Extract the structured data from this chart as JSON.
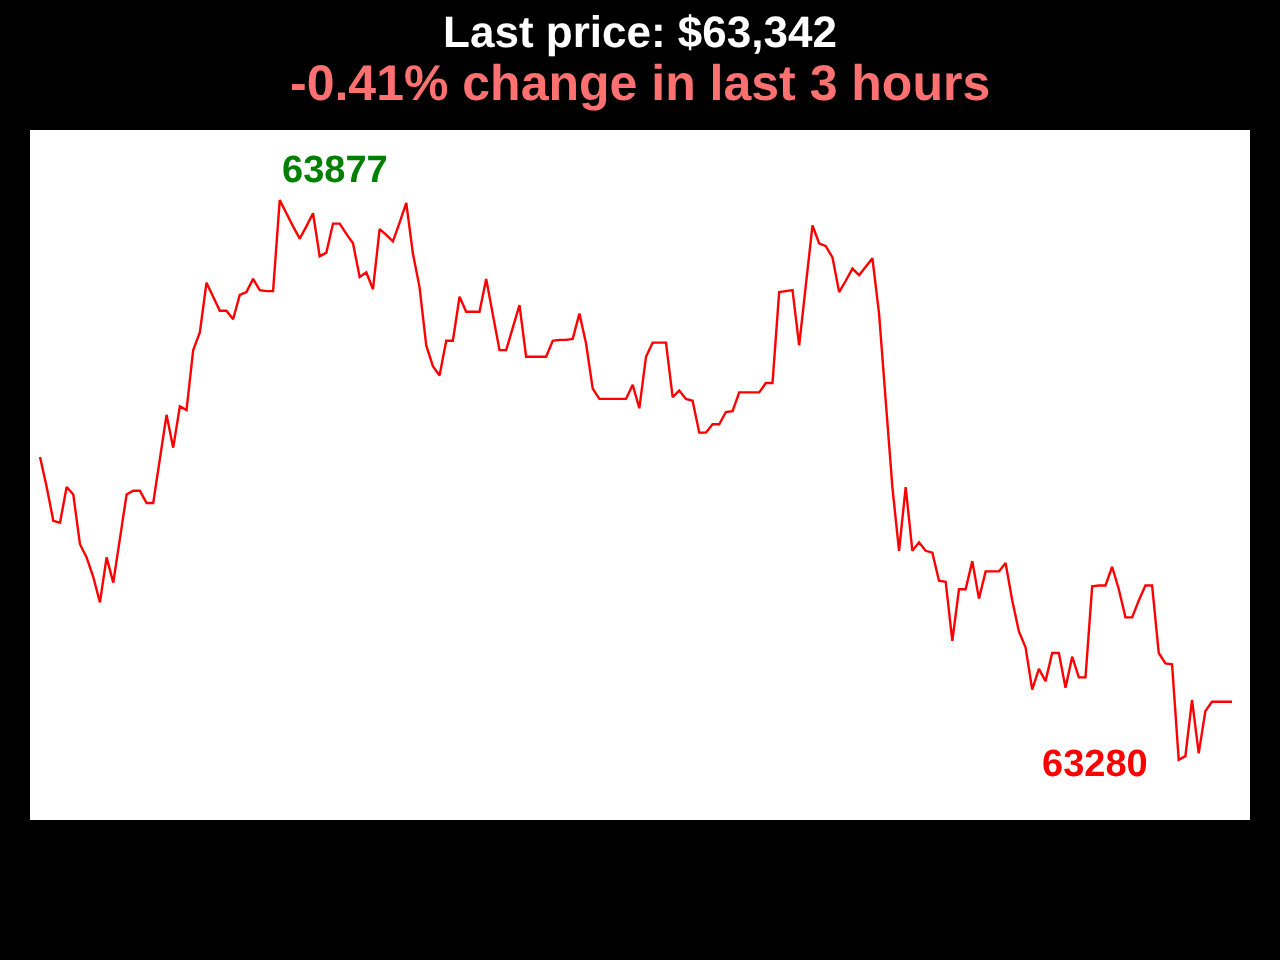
{
  "chart_data": {
    "type": "line",
    "title": "Last price: $63,342",
    "subtitle": "-0.41% change in last 3 hours",
    "categories": [
      null,
      null,
      null,
      null,
      null,
      null,
      null,
      null,
      null,
      null,
      null,
      null,
      null,
      null,
      null,
      null,
      null,
      null,
      null,
      null,
      null,
      null,
      null,
      null,
      null,
      null,
      null,
      null,
      null,
      null,
      null,
      null,
      null,
      null,
      null,
      null,
      null,
      null,
      null,
      null,
      null,
      null,
      null,
      null,
      null,
      null,
      null,
      null,
      null,
      null,
      null,
      null,
      null,
      null,
      null,
      null,
      null,
      null,
      null,
      null,
      null,
      null,
      null,
      null,
      null,
      null,
      null,
      null,
      null,
      null,
      null,
      null,
      null,
      null,
      null,
      null,
      null,
      null,
      null,
      null,
      null,
      null,
      null,
      null,
      null,
      null,
      null,
      null,
      null,
      null,
      null,
      null,
      null,
      null,
      null,
      null,
      null,
      null,
      null,
      null,
      null,
      null,
      null,
      null,
      null,
      null,
      null,
      null,
      null,
      null,
      null,
      null,
      null,
      null,
      null,
      null,
      null,
      null,
      null,
      null,
      null,
      null,
      null,
      null,
      null,
      null,
      null,
      null,
      null,
      null,
      null,
      null,
      null,
      null,
      null,
      null,
      null,
      null,
      null,
      null,
      null,
      null,
      null,
      null,
      null,
      null,
      null,
      null,
      null,
      null,
      null,
      null,
      null,
      null,
      null,
      null,
      null,
      null,
      null,
      null,
      null,
      null,
      null,
      null,
      null,
      null,
      null,
      null,
      null,
      null,
      null,
      null,
      null,
      null,
      null,
      null,
      null,
      null,
      null,
      null
    ],
    "values": [
      63603,
      63571,
      63535,
      63533,
      63571,
      63563,
      63510,
      63496,
      63475,
      63448,
      63496,
      63469,
      63516,
      63563,
      63567,
      63567,
      63554,
      63554,
      63601,
      63648,
      63613,
      63657,
      63653,
      63717,
      63736,
      63789,
      63774,
      63759,
      63759,
      63750,
      63776,
      63779,
      63793,
      63781,
      63780,
      63780,
      63877,
      63863,
      63849,
      63836,
      63849,
      63863,
      63817,
      63821,
      63852,
      63852,
      63841,
      63831,
      63795,
      63800,
      63782,
      63846,
      63840,
      63833,
      63853,
      63874,
      63820,
      63784,
      63722,
      63700,
      63690,
      63727,
      63727,
      63774,
      63758,
      63758,
      63758,
      63793,
      63755,
      63717,
      63717,
      63741,
      63765,
      63710,
      63710,
      63710,
      63710,
      63727,
      63728,
      63728,
      63729,
      63756,
      63724,
      63676,
      63665,
      63665,
      63665,
      63665,
      63665,
      63680,
      63655,
      63710,
      63725,
      63725,
      63725,
      63667,
      63674,
      63665,
      63663,
      63629,
      63629,
      63638,
      63638,
      63651,
      63652,
      63672,
      63672,
      63672,
      63672,
      63682,
      63682,
      63779,
      63780,
      63781,
      63722,
      63786,
      63850,
      63831,
      63828,
      63816,
      63779,
      63791,
      63804,
      63797,
      63806,
      63815,
      63756,
      63663,
      63571,
      63503,
      63571,
      63503,
      63512,
      63503,
      63501,
      63471,
      63470,
      63407,
      63462,
      63462,
      63492,
      63452,
      63481,
      63481,
      63481,
      63490,
      63450,
      63417,
      63400,
      63355,
      63377,
      63364,
      63394,
      63394,
      63357,
      63390,
      63368,
      63368,
      63465,
      63466,
      63466,
      63486,
      63462,
      63432,
      63432,
      63450,
      63466,
      63466,
      63394,
      63383,
      63382,
      63280,
      63284,
      63344,
      63287,
      63332,
      63342,
      63342,
      63342,
      63342
    ],
    "value_labels": [
      null,
      null,
      null,
      null,
      null,
      null,
      null,
      null,
      null,
      null,
      null,
      null,
      null,
      null,
      null,
      null,
      null,
      null,
      null,
      null,
      null,
      null,
      null,
      null,
      null,
      null,
      null,
      null,
      null,
      null,
      null,
      null,
      null,
      null,
      null,
      null,
      "63877",
      null,
      null,
      null,
      null,
      null,
      null,
      null,
      null,
      null,
      null,
      null,
      null,
      null,
      null,
      null,
      null,
      null,
      null,
      null,
      null,
      null,
      null,
      null,
      null,
      null,
      null,
      null,
      null,
      null,
      null,
      null,
      null,
      null,
      null,
      null,
      null,
      null,
      null,
      null,
      null,
      null,
      null,
      null,
      null,
      null,
      null,
      null,
      null,
      null,
      null,
      null,
      null,
      null,
      null,
      null,
      null,
      null,
      null,
      null,
      null,
      null,
      null,
      null,
      null,
      null,
      null,
      null,
      null,
      null,
      null,
      null,
      null,
      null,
      null,
      null,
      null,
      null,
      null,
      null,
      null,
      null,
      null,
      null,
      null,
      null,
      null,
      null,
      null,
      null,
      null,
      null,
      null,
      null,
      null,
      null,
      null,
      null,
      null,
      null,
      null,
      null,
      null,
      null,
      null,
      null,
      null,
      null,
      null,
      null,
      null,
      null,
      null,
      null,
      null,
      null,
      null,
      null,
      null,
      null,
      null,
      null,
      null,
      null,
      null,
      null,
      null,
      null,
      null,
      null,
      null,
      null,
      null,
      null,
      null,
      "63280",
      null,
      null,
      null,
      null,
      null,
      null,
      null,
      null
    ],
    "color": "#ff0000",
    "line_style": "solid",
    "tick_labels": false
  }
}
